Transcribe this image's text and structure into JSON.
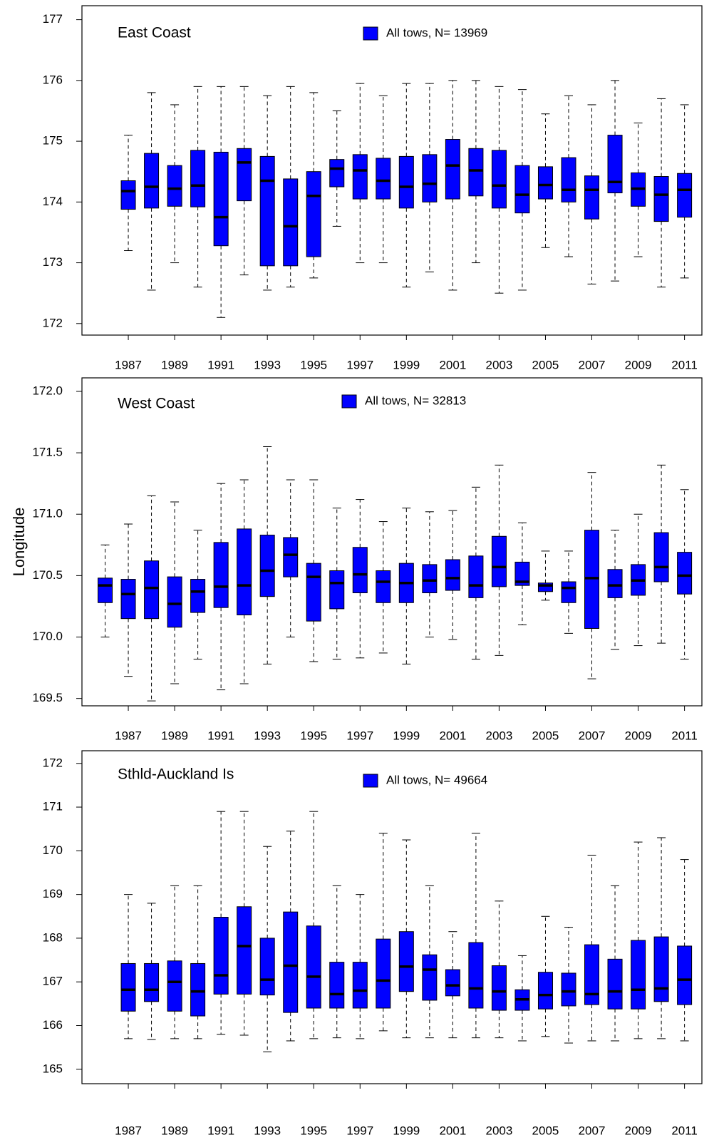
{
  "chart_data": [
    {
      "type": "box",
      "title": "East Coast",
      "x": [
        1987,
        1988,
        1989,
        1990,
        1991,
        1992,
        1993,
        1994,
        1995,
        1996,
        1997,
        1998,
        1999,
        2000,
        2001,
        2002,
        2003,
        2004,
        2005,
        2006,
        2007,
        2008,
        2009,
        2010,
        2011
      ],
      "xlim": [
        1985,
        2011.75
      ],
      "xticks": [
        1987,
        1989,
        1991,
        1993,
        1995,
        1997,
        1999,
        2001,
        2003,
        2005,
        2007,
        2009,
        2011
      ],
      "ylim": [
        171.81,
        177.23
      ],
      "yticks": [
        172,
        173,
        174,
        175,
        176,
        177
      ],
      "series": [
        {
          "name": "All tows, N= 13969",
          "color": "#0000ff",
          "whisker_low": [
            173.2,
            172.55,
            173.0,
            172.6,
            172.1,
            172.8,
            172.55,
            172.6,
            172.75,
            173.6,
            173.0,
            173.0,
            172.6,
            172.85,
            172.55,
            173.0,
            172.5,
            172.55,
            173.25,
            173.1,
            172.65,
            172.7,
            173.1,
            172.6,
            172.75
          ],
          "q1": [
            173.88,
            173.9,
            173.93,
            173.92,
            173.28,
            174.02,
            172.95,
            172.95,
            173.1,
            174.25,
            174.05,
            174.05,
            173.9,
            174.0,
            174.05,
            174.1,
            173.9,
            173.82,
            174.05,
            174.0,
            173.72,
            174.15,
            173.93,
            173.68,
            173.75
          ],
          "median": [
            174.18,
            174.25,
            174.22,
            174.27,
            173.75,
            174.65,
            174.35,
            173.6,
            174.1,
            174.55,
            174.52,
            174.35,
            174.25,
            174.3,
            174.6,
            174.52,
            174.27,
            174.12,
            174.28,
            174.2,
            174.2,
            174.33,
            174.22,
            174.12,
            174.2
          ],
          "q3": [
            174.35,
            174.8,
            174.6,
            174.85,
            174.82,
            174.88,
            174.75,
            174.38,
            174.5,
            174.7,
            174.78,
            174.72,
            174.75,
            174.78,
            175.03,
            174.88,
            174.85,
            174.6,
            174.58,
            174.73,
            174.43,
            175.1,
            174.48,
            174.42,
            174.47
          ],
          "whisker_high": [
            175.1,
            175.8,
            175.6,
            175.9,
            175.9,
            175.9,
            175.75,
            175.9,
            175.8,
            175.5,
            175.95,
            175.75,
            175.95,
            175.95,
            176.0,
            176.0,
            175.9,
            175.85,
            175.45,
            175.75,
            175.6,
            176.0,
            175.3,
            175.7,
            175.6
          ]
        }
      ]
    },
    {
      "type": "box",
      "title": "West Coast",
      "ylabel": "Longitude",
      "x": [
        1986,
        1987,
        1988,
        1989,
        1990,
        1991,
        1992,
        1993,
        1994,
        1995,
        1996,
        1997,
        1998,
        1999,
        2000,
        2001,
        2002,
        2003,
        2004,
        2005,
        2006,
        2007,
        2008,
        2009,
        2010,
        2011
      ],
      "xlim": [
        1985,
        2011.75
      ],
      "xticks": [
        1987,
        1989,
        1991,
        1993,
        1995,
        1997,
        1999,
        2001,
        2003,
        2005,
        2007,
        2009,
        2011
      ],
      "ylim": [
        169.44,
        172.11
      ],
      "yticks": [
        {
          "value": 172,
          "label": "172.0"
        },
        171.5,
        {
          "value": 171,
          "label": "171.0"
        },
        170.5,
        {
          "value": 170,
          "label": "170.0"
        },
        169.5
      ],
      "series": [
        {
          "name": "All tows, N= 32813",
          "color": "#0000ff",
          "whisker_low": [
            170.0,
            169.68,
            169.48,
            169.62,
            169.82,
            169.57,
            169.62,
            169.78,
            170.0,
            169.8,
            169.82,
            169.83,
            169.87,
            169.78,
            170.0,
            169.98,
            169.82,
            169.85,
            170.1,
            170.3,
            170.03,
            169.66,
            169.9,
            169.93,
            169.95,
            169.82
          ],
          "q1": [
            170.28,
            170.15,
            170.15,
            170.08,
            170.2,
            170.24,
            170.18,
            170.33,
            170.49,
            170.13,
            170.23,
            170.36,
            170.28,
            170.28,
            170.36,
            170.38,
            170.32,
            170.41,
            170.42,
            170.37,
            170.28,
            170.07,
            170.32,
            170.34,
            170.45,
            170.35
          ],
          "median": [
            170.42,
            170.35,
            170.4,
            170.27,
            170.37,
            170.41,
            170.42,
            170.54,
            170.67,
            170.49,
            170.44,
            170.51,
            170.45,
            170.44,
            170.46,
            170.48,
            170.42,
            170.57,
            170.45,
            170.42,
            170.4,
            170.48,
            170.42,
            170.46,
            170.57,
            170.5
          ],
          "q3": [
            170.48,
            170.47,
            170.62,
            170.49,
            170.47,
            170.77,
            170.88,
            170.83,
            170.81,
            170.6,
            170.54,
            170.73,
            170.54,
            170.6,
            170.59,
            170.63,
            170.66,
            170.82,
            170.61,
            170.44,
            170.45,
            170.87,
            170.55,
            170.59,
            170.85,
            170.69
          ],
          "whisker_high": [
            170.75,
            170.92,
            171.15,
            171.1,
            170.87,
            171.25,
            171.28,
            171.55,
            171.28,
            171.28,
            171.05,
            171.12,
            170.94,
            171.05,
            171.02,
            171.03,
            171.22,
            171.4,
            170.93,
            170.7,
            170.7,
            171.34,
            170.87,
            171.0,
            171.4,
            171.2
          ]
        }
      ]
    },
    {
      "type": "box",
      "title": "Sthld-Auckland Is",
      "x": [
        1987,
        1988,
        1989,
        1990,
        1991,
        1992,
        1993,
        1994,
        1995,
        1996,
        1997,
        1998,
        1999,
        2000,
        2001,
        2002,
        2003,
        2004,
        2005,
        2006,
        2007,
        2008,
        2009,
        2010,
        2011
      ],
      "xlim": [
        1985,
        2011.75
      ],
      "xticks": [
        1987,
        1989,
        1991,
        1993,
        1995,
        1997,
        1999,
        2001,
        2003,
        2005,
        2007,
        2009,
        2011
      ],
      "ylim": [
        164.67,
        172.29
      ],
      "yticks": [
        165,
        166,
        167,
        168,
        169,
        170,
        171,
        172
      ],
      "series": [
        {
          "name": "All tows, N= 49664",
          "color": "#0000ff",
          "whisker_low": [
            165.7,
            165.68,
            165.7,
            165.7,
            165.8,
            165.78,
            165.4,
            165.65,
            165.7,
            165.72,
            165.7,
            165.88,
            165.72,
            165.72,
            165.72,
            165.72,
            165.72,
            165.65,
            165.75,
            165.6,
            165.65,
            165.65,
            165.7,
            165.7,
            165.65
          ],
          "q1": [
            166.33,
            166.55,
            166.33,
            166.22,
            166.72,
            166.72,
            166.7,
            166.3,
            166.4,
            166.4,
            166.4,
            166.4,
            166.78,
            166.58,
            166.68,
            166.4,
            166.35,
            166.35,
            166.38,
            166.45,
            166.48,
            166.38,
            166.38,
            166.55,
            166.48
          ],
          "median": [
            166.82,
            166.82,
            167.0,
            166.78,
            167.15,
            167.82,
            167.05,
            167.37,
            167.12,
            166.72,
            166.8,
            167.03,
            167.35,
            167.28,
            166.92,
            166.85,
            166.78,
            166.6,
            166.7,
            166.78,
            166.72,
            166.78,
            166.82,
            166.85,
            167.05
          ],
          "q3": [
            167.42,
            167.42,
            167.48,
            167.42,
            168.48,
            168.72,
            168.0,
            168.6,
            168.28,
            167.45,
            167.45,
            167.98,
            168.15,
            167.62,
            167.28,
            167.9,
            167.37,
            166.82,
            167.22,
            167.2,
            167.85,
            167.52,
            167.95,
            168.03,
            167.82
          ],
          "whisker_high": [
            169.0,
            168.8,
            169.2,
            169.2,
            170.9,
            170.9,
            170.1,
            170.45,
            170.9,
            169.2,
            169.0,
            170.4,
            170.25,
            169.2,
            168.15,
            170.4,
            168.85,
            167.6,
            168.5,
            168.25,
            169.9,
            169.2,
            170.2,
            170.3,
            169.8
          ]
        }
      ]
    }
  ]
}
